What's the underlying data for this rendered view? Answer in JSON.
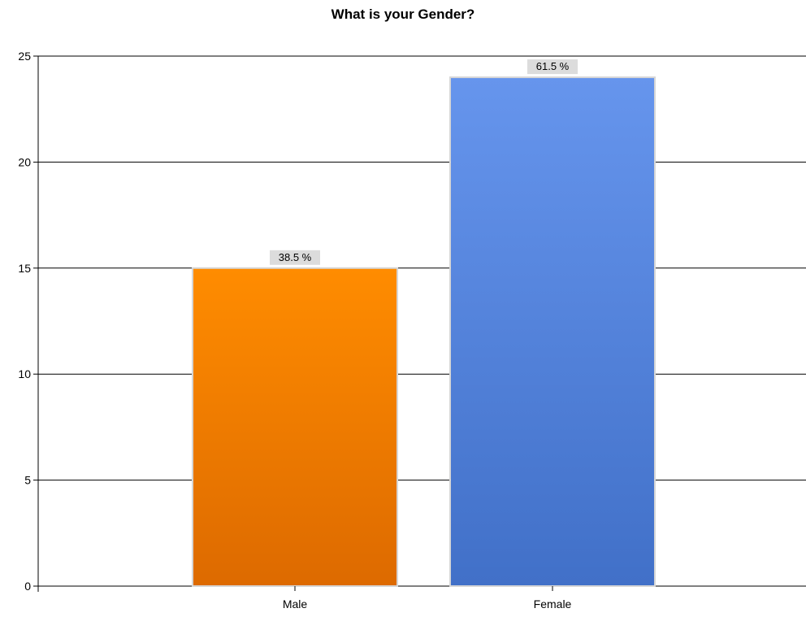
{
  "chart_data": {
    "type": "bar",
    "title": "What is your Gender?",
    "xlabel": "",
    "ylabel": "",
    "categories": [
      "Male",
      "Female"
    ],
    "values": [
      15,
      24
    ],
    "data_labels": [
      "38.5 %",
      "61.5 %"
    ],
    "colors": [
      {
        "top": "#ff8c00",
        "bottom": "#dd6a00"
      },
      {
        "top": "#6695ed",
        "bottom": "#4170c8"
      }
    ],
    "ylim": [
      0,
      25
    ],
    "yticks": [
      "0",
      "5",
      "10",
      "15",
      "20",
      "25"
    ],
    "grid": true,
    "legend": "none"
  }
}
